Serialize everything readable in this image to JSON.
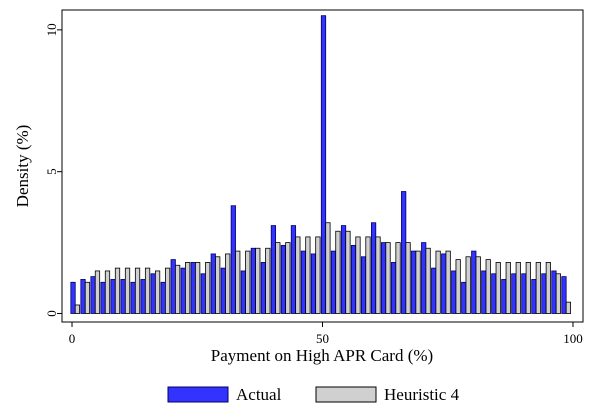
{
  "chart_data": {
    "type": "bar",
    "x_label": "Payment on High APR Card (%)",
    "y_label": "Density (%)",
    "x": [
      0,
      2,
      4,
      6,
      8,
      10,
      12,
      14,
      16,
      18,
      20,
      22,
      24,
      26,
      28,
      30,
      32,
      34,
      36,
      38,
      40,
      42,
      44,
      46,
      48,
      50,
      52,
      54,
      56,
      58,
      60,
      62,
      64,
      66,
      68,
      70,
      72,
      74,
      76,
      78,
      80,
      82,
      84,
      86,
      88,
      90,
      92,
      94,
      96,
      98
    ],
    "series": [
      {
        "name": "Actual",
        "color": "#3333ff",
        "values": [
          1.1,
          1.2,
          1.3,
          1.1,
          1.2,
          1.2,
          1.1,
          1.2,
          1.4,
          1.1,
          1.9,
          1.6,
          1.8,
          1.4,
          2.1,
          1.6,
          3.8,
          1.5,
          2.3,
          1.8,
          3.1,
          2.4,
          3.1,
          2.2,
          2.1,
          10.5,
          2.2,
          3.1,
          2.4,
          2.0,
          3.2,
          2.5,
          1.8,
          4.3,
          2.2,
          2.5,
          1.6,
          2.1,
          1.5,
          1.1,
          2.2,
          1.5,
          1.4,
          1.2,
          1.4,
          1.4,
          1.2,
          1.4,
          1.5,
          1.3
        ]
      },
      {
        "name": "Heuristic 4",
        "color": "#d0d0d0",
        "values": [
          0.3,
          1.1,
          1.5,
          1.5,
          1.6,
          1.6,
          1.6,
          1.6,
          1.5,
          1.6,
          1.7,
          1.8,
          1.8,
          1.8,
          2.0,
          2.1,
          2.2,
          2.2,
          2.3,
          2.3,
          2.5,
          2.5,
          2.7,
          2.7,
          2.7,
          3.2,
          2.9,
          2.9,
          2.7,
          2.7,
          2.7,
          2.5,
          2.5,
          2.5,
          2.2,
          2.3,
          2.2,
          2.2,
          1.9,
          2.0,
          2.0,
          1.9,
          1.8,
          1.8,
          1.8,
          1.8,
          1.8,
          1.8,
          1.4,
          0.4
        ]
      }
    ],
    "xlim": [
      -2,
      102
    ],
    "ylim": [
      -0.3,
      10.7
    ],
    "xticks": [
      0,
      50,
      100
    ],
    "yticks": [
      0,
      5,
      10
    ],
    "legend": "bottom"
  }
}
